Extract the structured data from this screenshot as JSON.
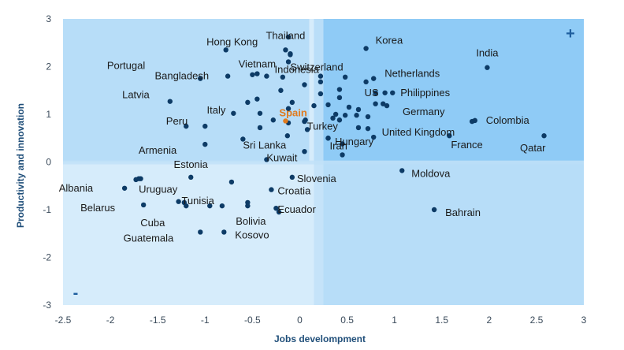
{
  "chart_data": {
    "type": "scatter",
    "xlabel": "Jobs develompment",
    "ylabel": "Productivity and innovation",
    "xlim": [
      -2.5,
      3
    ],
    "ylim": [
      -3,
      3
    ],
    "x_ticks": [
      -2.5,
      -2,
      -1.5,
      -1,
      -0.5,
      0,
      0.5,
      1,
      1.5,
      2,
      2.5,
      3
    ],
    "y_ticks": [
      -3,
      -2,
      -1,
      0,
      1,
      2,
      3
    ],
    "quadrant_signs": {
      "top_right": "+",
      "bottom_left": "-"
    },
    "colors": {
      "point": "#0d3b66",
      "highlight": "#e07b1f",
      "bg_light": "#d6ecfb",
      "bg_mid": "#b7ddf8",
      "bg_dark": "#8fcbf6",
      "band": "#c2e2f8"
    },
    "labeled_points": [
      {
        "name": "Thailand",
        "x": -0.15,
        "y": 2.35
      },
      {
        "name": "Korea",
        "x": 0.7,
        "y": 2.38
      },
      {
        "name": "Hong Kong",
        "x": -0.78,
        "y": 2.35
      },
      {
        "name": "Portugal",
        "x": -1.05,
        "y": 1.75
      },
      {
        "name": "Switzerland",
        "x": -0.1,
        "y": 2.25
      },
      {
        "name": "India",
        "x": 1.98,
        "y": 1.98
      },
      {
        "name": "Vietnam",
        "x": -0.45,
        "y": 1.85
      },
      {
        "name": "Bangladesh",
        "x": -0.76,
        "y": 1.8
      },
      {
        "name": "Indonesia",
        "x": 0.22,
        "y": 1.8
      },
      {
        "name": "Netherlands",
        "x": 0.78,
        "y": 1.75
      },
      {
        "name": "US",
        "x": 0.9,
        "y": 1.45
      },
      {
        "name": "Philippines",
        "x": 0.98,
        "y": 1.45
      },
      {
        "name": "Latvia",
        "x": -1.37,
        "y": 1.27
      },
      {
        "name": "Italy",
        "x": -0.55,
        "y": 1.25
      },
      {
        "name": "Germany",
        "x": 0.92,
        "y": 1.18
      },
      {
        "name": "Peru",
        "x": -1.0,
        "y": 0.75
      },
      {
        "name": "Spain",
        "x": -0.15,
        "y": 0.86
      },
      {
        "name": "Turkey",
        "x": 0.06,
        "y": 0.88
      },
      {
        "name": "United Kingdom",
        "x": 1.82,
        "y": 0.85
      },
      {
        "name": "Colombia",
        "x": 1.85,
        "y": 0.87
      },
      {
        "name": "Armenia",
        "x": -1.0,
        "y": 0.37
      },
      {
        "name": "Sri Lanka",
        "x": -0.6,
        "y": 0.48
      },
      {
        "name": "Iran",
        "x": 0.3,
        "y": 0.5
      },
      {
        "name": "Hungary",
        "x": 0.78,
        "y": 0.52
      },
      {
        "name": "France",
        "x": 1.58,
        "y": 0.55
      },
      {
        "name": "Qatar",
        "x": 2.58,
        "y": 0.55
      },
      {
        "name": "Kuwait",
        "x": -0.35,
        "y": 0.05
      },
      {
        "name": "Estonia",
        "x": -1.15,
        "y": -0.32
      },
      {
        "name": "Moldova",
        "x": 1.08,
        "y": -0.18
      },
      {
        "name": "Slovenia",
        "x": -0.08,
        "y": -0.32
      },
      {
        "name": "Uruguay",
        "x": -1.7,
        "y": -0.35
      },
      {
        "name": "Albania",
        "x": -1.85,
        "y": -0.55
      },
      {
        "name": "Croatia",
        "x": -0.3,
        "y": -0.58
      },
      {
        "name": "Tunisia",
        "x": -0.82,
        "y": -0.92
      },
      {
        "name": "Belarus",
        "x": -1.65,
        "y": -0.9
      },
      {
        "name": "Ecuador",
        "x": -0.25,
        "y": -0.97
      },
      {
        "name": "Bahrain",
        "x": 1.42,
        "y": -1.0
      },
      {
        "name": "Cuba",
        "x": -1.22,
        "y": -0.85
      },
      {
        "name": "Bolivia",
        "x": -0.55,
        "y": -0.92
      },
      {
        "name": "Kosovo",
        "x": -0.8,
        "y": -1.47
      },
      {
        "name": "Guatemala",
        "x": -1.05,
        "y": -1.47
      }
    ],
    "unlabeled_points": [
      [
        -0.12,
        2.62
      ],
      [
        -0.1,
        2.27
      ],
      [
        -0.12,
        2.1
      ],
      [
        0.22,
        1.68
      ],
      [
        -0.5,
        1.83
      ],
      [
        -0.35,
        1.8
      ],
      [
        -0.18,
        1.78
      ],
      [
        0.48,
        1.78
      ],
      [
        -0.2,
        1.5
      ],
      [
        0.05,
        1.62
      ],
      [
        0.22,
        1.43
      ],
      [
        0.42,
        1.52
      ],
      [
        0.42,
        1.35
      ],
      [
        0.7,
        1.68
      ],
      [
        0.8,
        1.22
      ],
      [
        0.8,
        1.45
      ],
      [
        0.88,
        1.22
      ],
      [
        -0.45,
        1.32
      ],
      [
        -0.08,
        1.25
      ],
      [
        0.15,
        1.18
      ],
      [
        0.3,
        1.2
      ],
      [
        0.52,
        1.15
      ],
      [
        0.62,
        1.1
      ],
      [
        -0.7,
        1.02
      ],
      [
        -0.42,
        1.02
      ],
      [
        -0.12,
        1.12
      ],
      [
        0.38,
        1.0
      ],
      [
        0.48,
        0.98
      ],
      [
        0.6,
        0.98
      ],
      [
        0.72,
        0.95
      ],
      [
        -0.28,
        0.88
      ],
      [
        -0.12,
        0.82
      ],
      [
        0.05,
        0.85
      ],
      [
        0.42,
        0.88
      ],
      [
        0.35,
        0.92
      ],
      [
        0.62,
        0.72
      ],
      [
        0.72,
        0.7
      ],
      [
        -0.42,
        0.72
      ],
      [
        0.08,
        0.68
      ],
      [
        -1.2,
        0.75
      ],
      [
        0.3,
        0.5
      ],
      [
        0.45,
        0.38
      ],
      [
        0.45,
        0.15
      ],
      [
        -0.13,
        0.55
      ],
      [
        0.05,
        0.22
      ],
      [
        -1.73,
        -0.37
      ],
      [
        -1.68,
        -0.35
      ],
      [
        -1.28,
        -0.83
      ],
      [
        -0.72,
        -0.42
      ],
      [
        -0.55,
        -0.85
      ],
      [
        -0.22,
        -1.05
      ],
      [
        -0.95,
        -0.92
      ],
      [
        -1.2,
        -0.92
      ]
    ]
  }
}
